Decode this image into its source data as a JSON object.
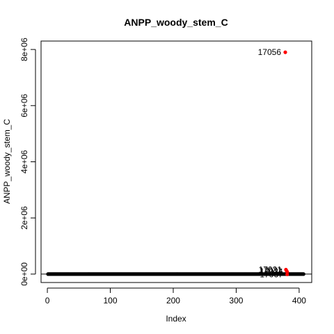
{
  "chart_data": {
    "type": "scatter",
    "title": "ANPP_woody_stem_C",
    "xlabel": "Index",
    "ylabel": "ANPP_woody_stem_C",
    "xlim": [
      -10,
      420
    ],
    "ylim": [
      -300000,
      8300000
    ],
    "x_ticks": [
      0,
      100,
      200,
      300,
      400
    ],
    "x_tick_labels": [
      "0",
      "100",
      "200",
      "300",
      "400"
    ],
    "y_ticks": [
      0,
      2000000,
      4000000,
      6000000,
      8000000
    ],
    "y_tick_labels": [
      "0e+00",
      "2e+06",
      "4e+06",
      "6e+06",
      "8e+06"
    ],
    "reference_line_y": 0,
    "baseline_series": {
      "x_start": 1,
      "x_end": 407,
      "y": 0,
      "color": "#000000"
    },
    "outliers": [
      {
        "x": 378,
        "y": 7900000,
        "label": "17056"
      },
      {
        "x": 379,
        "y": 160000,
        "label": "17021"
      },
      {
        "x": 380,
        "y": 120000,
        "label": "17031"
      },
      {
        "x": 381,
        "y": 80000,
        "label": "17034"
      },
      {
        "x": 381,
        "y": -10000,
        "label": "17067"
      }
    ],
    "outlier_color": "#ff0000",
    "grid": false,
    "legend": "none"
  }
}
